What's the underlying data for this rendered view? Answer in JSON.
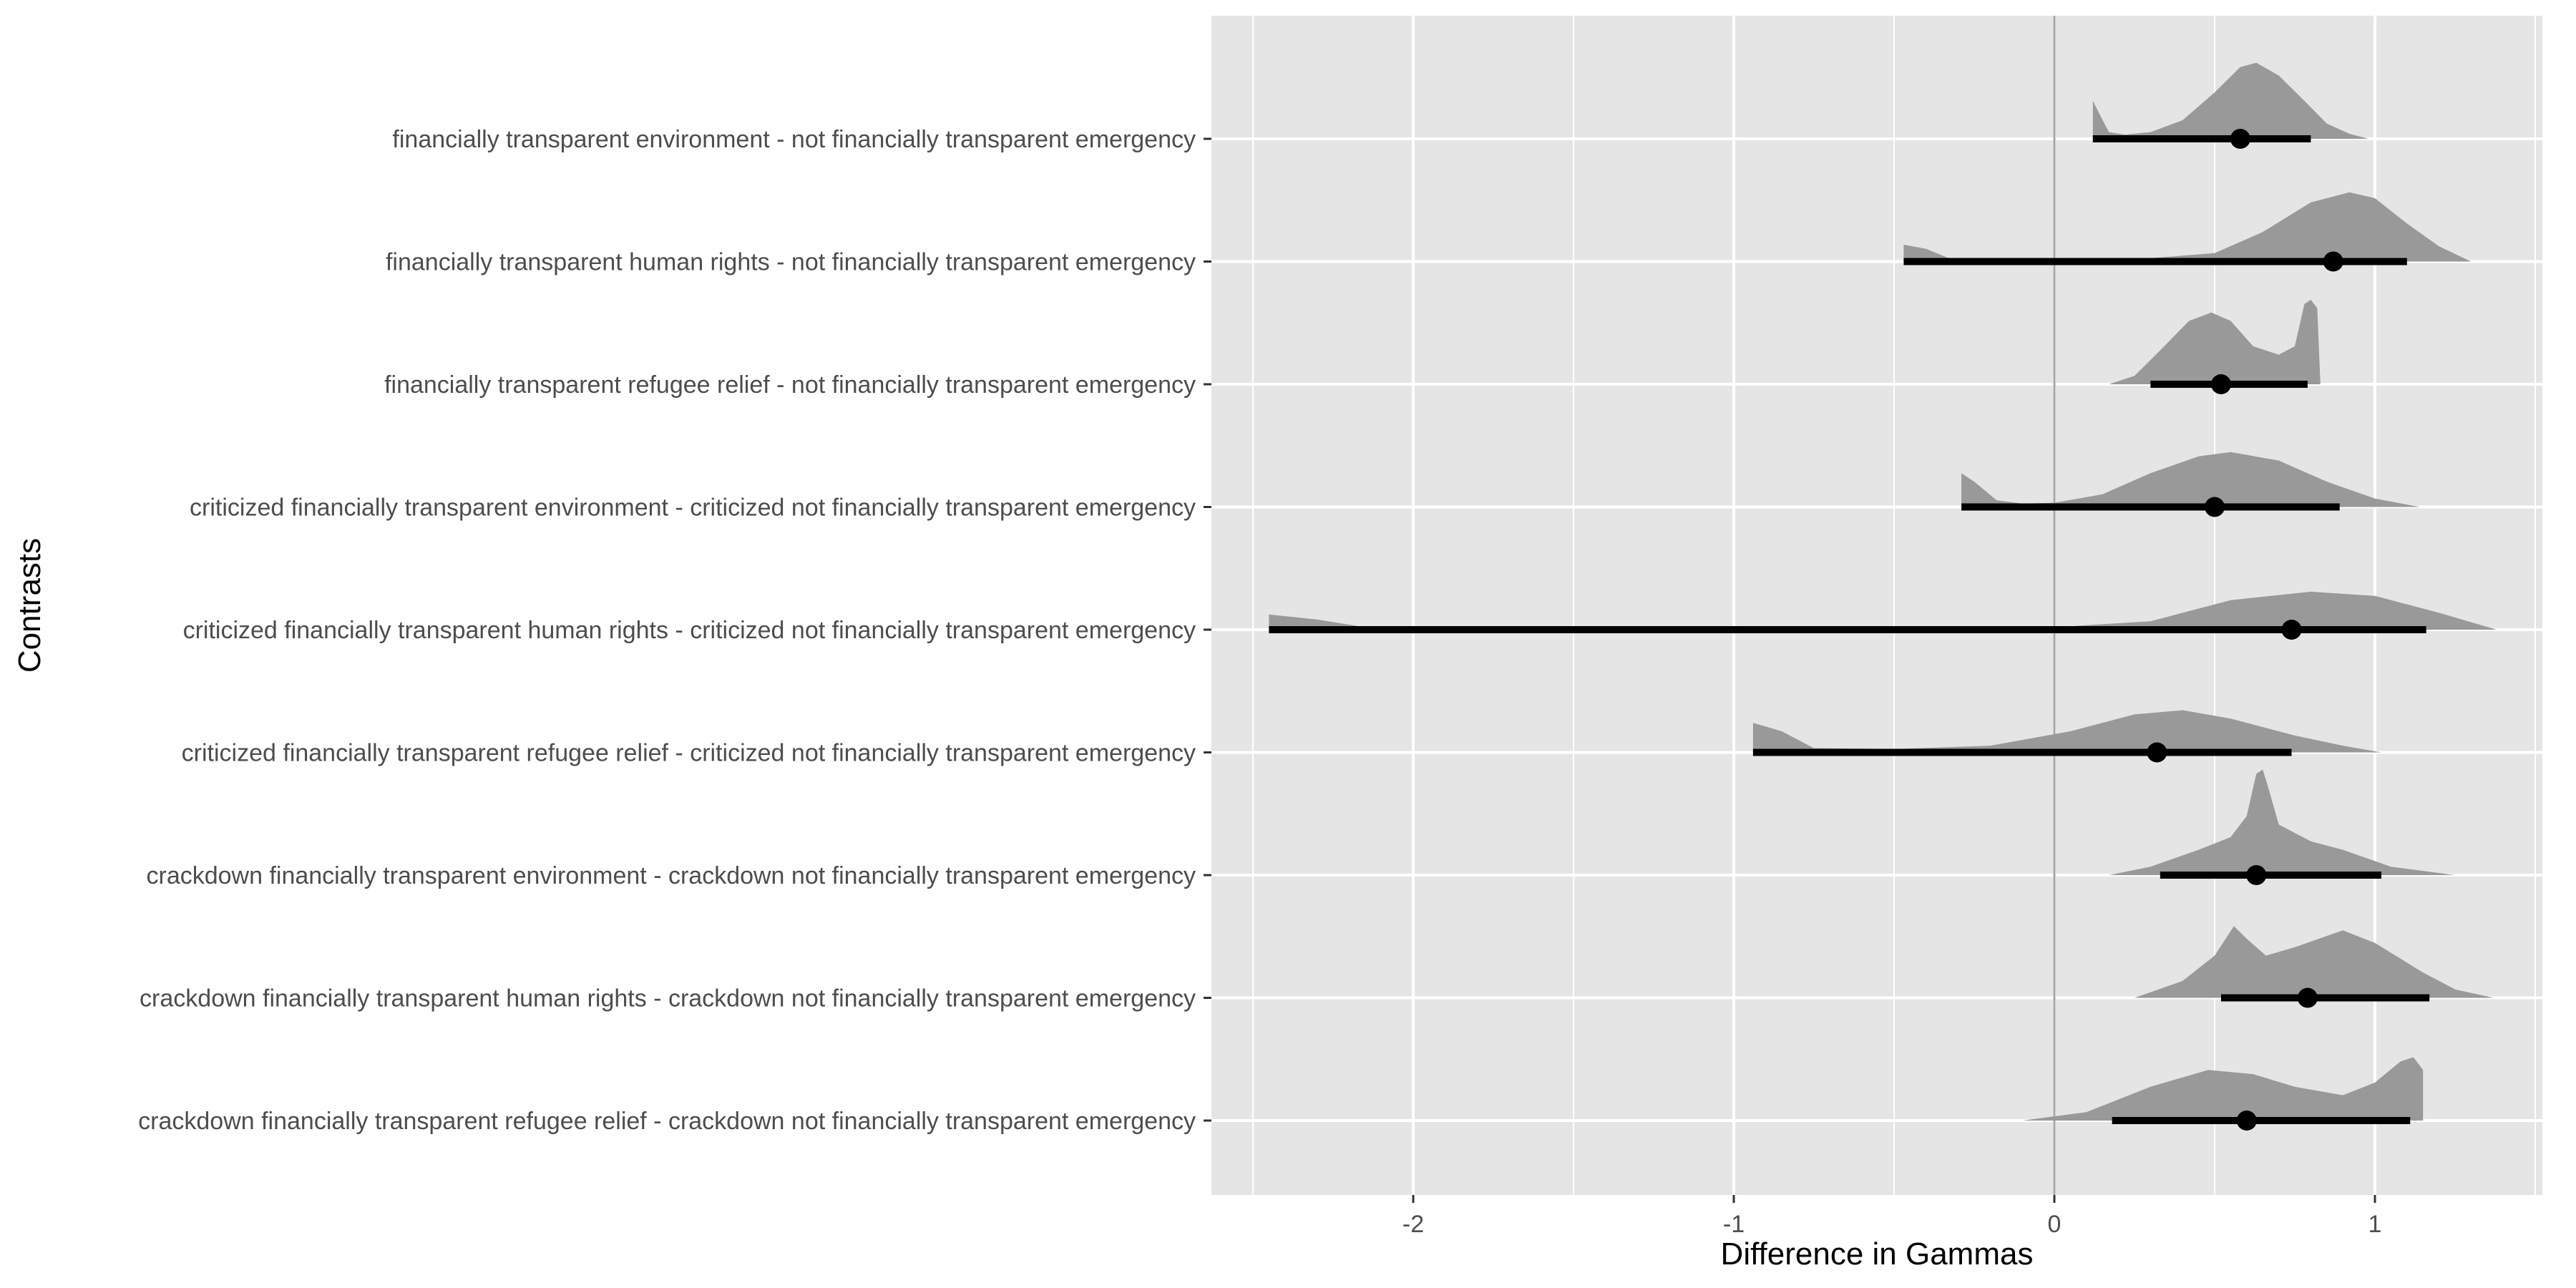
{
  "chart_data": {
    "type": "ridgeline-interval",
    "xlabel": "Difference in Gammas",
    "ylabel": "Contrasts",
    "xlim": [
      -2.6,
      1.5
    ],
    "x_ticks": [
      -2,
      -1,
      0,
      1
    ],
    "x_tick_labels": [
      "-2",
      "-1",
      "0",
      "1"
    ],
    "reference_line_x": 0,
    "grid": true,
    "colors": {
      "panel": "#e5e5e5",
      "grid": "#ffffff",
      "density": "#999999",
      "interval": "#000000",
      "reference_line": "#a6a6a6",
      "tick_text": "#4d4d4d"
    },
    "series": [
      {
        "name": "financially transparent environment - not financially transparent emergency",
        "point": 0.58,
        "lower": 0.12,
        "upper": 0.8,
        "density": [
          [
            0.12,
            0.45
          ],
          [
            0.14,
            0.3
          ],
          [
            0.17,
            0.08
          ],
          [
            0.22,
            0.05
          ],
          [
            0.3,
            0.08
          ],
          [
            0.4,
            0.22
          ],
          [
            0.5,
            0.55
          ],
          [
            0.58,
            0.85
          ],
          [
            0.63,
            0.9
          ],
          [
            0.7,
            0.75
          ],
          [
            0.78,
            0.45
          ],
          [
            0.85,
            0.18
          ],
          [
            0.92,
            0.06
          ],
          [
            0.98,
            0.0
          ]
        ]
      },
      {
        "name": "financially transparent human rights - not financially transparent emergency",
        "point": 0.87,
        "lower": -0.47,
        "upper": 1.1,
        "density": [
          [
            -0.47,
            0.2
          ],
          [
            -0.4,
            0.15
          ],
          [
            -0.33,
            0.04
          ],
          [
            -0.2,
            0.02
          ],
          [
            0.0,
            0.02
          ],
          [
            0.3,
            0.04
          ],
          [
            0.5,
            0.1
          ],
          [
            0.65,
            0.35
          ],
          [
            0.8,
            0.7
          ],
          [
            0.92,
            0.82
          ],
          [
            1.0,
            0.75
          ],
          [
            1.1,
            0.45
          ],
          [
            1.2,
            0.18
          ],
          [
            1.3,
            0.0
          ]
        ]
      },
      {
        "name": "financially transparent refugee relief - not financially transparent emergency",
        "point": 0.52,
        "lower": 0.3,
        "upper": 0.79,
        "density": [
          [
            0.17,
            0.0
          ],
          [
            0.25,
            0.1
          ],
          [
            0.33,
            0.4
          ],
          [
            0.42,
            0.75
          ],
          [
            0.49,
            0.85
          ],
          [
            0.55,
            0.75
          ],
          [
            0.62,
            0.45
          ],
          [
            0.7,
            0.35
          ],
          [
            0.75,
            0.45
          ],
          [
            0.78,
            0.95
          ],
          [
            0.8,
            1.0
          ],
          [
            0.82,
            0.9
          ],
          [
            0.83,
            0.0
          ]
        ]
      },
      {
        "name": "criticized financially transparent environment - criticized not financially transparent emergency",
        "point": 0.5,
        "lower": -0.29,
        "upper": 0.89,
        "density": [
          [
            -0.29,
            0.4
          ],
          [
            -0.25,
            0.3
          ],
          [
            -0.18,
            0.08
          ],
          [
            -0.1,
            0.04
          ],
          [
            0.0,
            0.05
          ],
          [
            0.15,
            0.15
          ],
          [
            0.3,
            0.4
          ],
          [
            0.45,
            0.6
          ],
          [
            0.55,
            0.65
          ],
          [
            0.7,
            0.55
          ],
          [
            0.85,
            0.3
          ],
          [
            1.0,
            0.1
          ],
          [
            1.14,
            0.0
          ]
        ]
      },
      {
        "name": "criticized financially transparent human rights - criticized not financially transparent emergency",
        "point": 0.74,
        "lower": -2.45,
        "upper": 1.16,
        "density": [
          [
            -2.45,
            0.18
          ],
          [
            -2.3,
            0.12
          ],
          [
            -2.15,
            0.03
          ],
          [
            -1.5,
            0.02
          ],
          [
            -0.8,
            0.02
          ],
          [
            0.0,
            0.03
          ],
          [
            0.3,
            0.1
          ],
          [
            0.55,
            0.35
          ],
          [
            0.8,
            0.45
          ],
          [
            1.0,
            0.4
          ],
          [
            1.2,
            0.2
          ],
          [
            1.38,
            0.0
          ]
        ]
      },
      {
        "name": "criticized financially transparent refugee relief - criticized not financially transparent emergency",
        "point": 0.32,
        "lower": -0.94,
        "upper": 0.74,
        "density": [
          [
            -0.94,
            0.35
          ],
          [
            -0.85,
            0.25
          ],
          [
            -0.75,
            0.05
          ],
          [
            -0.5,
            0.04
          ],
          [
            -0.2,
            0.08
          ],
          [
            0.05,
            0.25
          ],
          [
            0.25,
            0.45
          ],
          [
            0.4,
            0.5
          ],
          [
            0.55,
            0.4
          ],
          [
            0.75,
            0.2
          ],
          [
            0.9,
            0.08
          ],
          [
            1.02,
            0.0
          ]
        ]
      },
      {
        "name": "crackdown financially transparent environment - crackdown not financially transparent emergency",
        "point": 0.63,
        "lower": 0.33,
        "upper": 1.02,
        "density": [
          [
            0.17,
            0.0
          ],
          [
            0.3,
            0.1
          ],
          [
            0.45,
            0.3
          ],
          [
            0.55,
            0.45
          ],
          [
            0.6,
            0.7
          ],
          [
            0.63,
            1.2
          ],
          [
            0.65,
            1.25
          ],
          [
            0.67,
            1.0
          ],
          [
            0.7,
            0.6
          ],
          [
            0.8,
            0.4
          ],
          [
            0.9,
            0.3
          ],
          [
            1.05,
            0.1
          ],
          [
            1.25,
            0.0
          ]
        ]
      },
      {
        "name": "crackdown financially transparent human rights - crackdown not financially transparent emergency",
        "point": 0.79,
        "lower": 0.52,
        "upper": 1.17,
        "density": [
          [
            0.25,
            0.0
          ],
          [
            0.4,
            0.2
          ],
          [
            0.5,
            0.5
          ],
          [
            0.56,
            0.85
          ],
          [
            0.6,
            0.7
          ],
          [
            0.66,
            0.5
          ],
          [
            0.75,
            0.6
          ],
          [
            0.9,
            0.8
          ],
          [
            1.0,
            0.65
          ],
          [
            1.15,
            0.3
          ],
          [
            1.25,
            0.1
          ],
          [
            1.37,
            0.0
          ]
        ]
      },
      {
        "name": "crackdown financially transparent refugee relief - crackdown not financially transparent emergency",
        "point": 0.6,
        "lower": 0.18,
        "upper": 1.11,
        "density": [
          [
            -0.1,
            0.0
          ],
          [
            0.1,
            0.1
          ],
          [
            0.3,
            0.4
          ],
          [
            0.48,
            0.6
          ],
          [
            0.62,
            0.55
          ],
          [
            0.75,
            0.4
          ],
          [
            0.9,
            0.3
          ],
          [
            1.0,
            0.45
          ],
          [
            1.08,
            0.7
          ],
          [
            1.12,
            0.75
          ],
          [
            1.15,
            0.6
          ],
          [
            1.15,
            0.0
          ]
        ]
      }
    ]
  }
}
